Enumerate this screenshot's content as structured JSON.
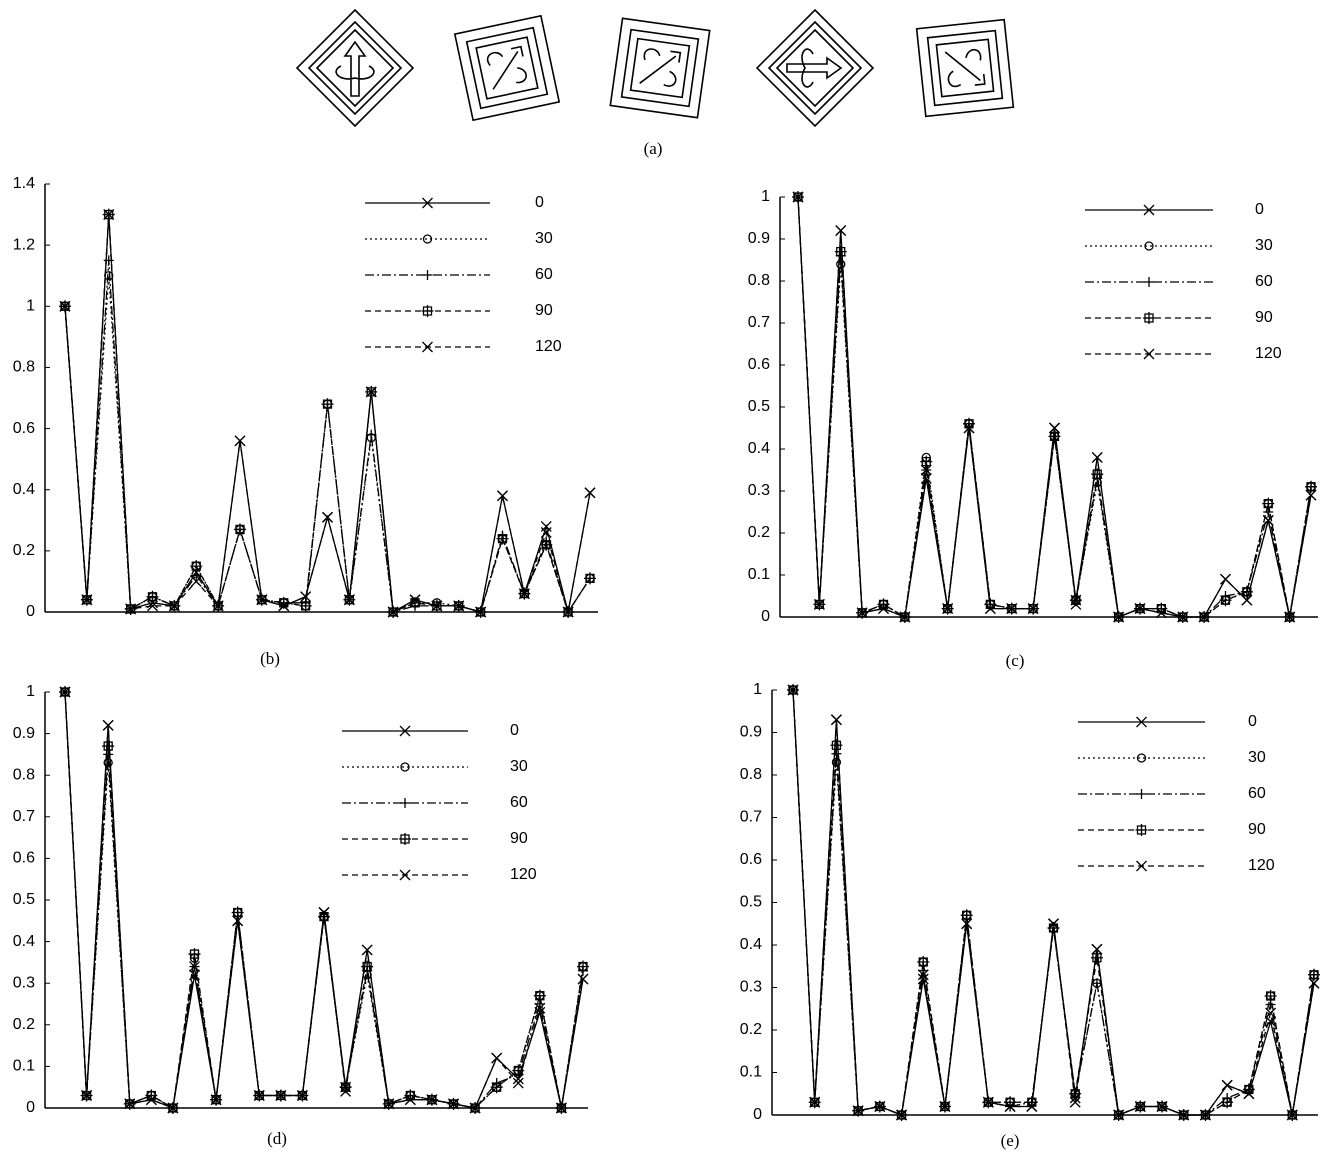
{
  "figure": {
    "panel_a_caption": "(a)"
  },
  "chart_data": [
    {
      "type": "line",
      "caption": "(b)",
      "categories": [
        null,
        null,
        null,
        null,
        null,
        null,
        null,
        null,
        null,
        null,
        null,
        null,
        null,
        null,
        null,
        null,
        null,
        null,
        null,
        null,
        null,
        null,
        null,
        null,
        null
      ],
      "ylim": [
        0,
        1.4
      ],
      "yticks": [
        0,
        0.2,
        0.4,
        0.6,
        0.8,
        1,
        1.2,
        1.4
      ],
      "series": [
        {
          "name": "0",
          "color": "#000",
          "style": "solid",
          "marker": "x",
          "values": [
            1.0,
            0.04,
            1.3,
            0.01,
            0.03,
            0.02,
            0.13,
            0.02,
            0.56,
            0.04,
            0.02,
            0.05,
            0.31,
            0.04,
            0.72,
            0.0,
            0.04,
            0.02,
            0.02,
            0.0,
            0.38,
            0.06,
            0.28,
            0.0,
            0.39
          ]
        },
        {
          "name": "30",
          "color": "#000",
          "style": "dotted",
          "marker": "o",
          "values": [
            1.0,
            0.04,
            1.1,
            0.01,
            0.05,
            0.02,
            0.15,
            0.02,
            0.27,
            0.04,
            0.03,
            0.02,
            0.68,
            0.04,
            0.57,
            0.0,
            0.03,
            0.03,
            0.02,
            0.0,
            0.24,
            0.06,
            0.22,
            0.0,
            0.11
          ]
        },
        {
          "name": "60",
          "color": "#000",
          "style": "dashdot",
          "marker": "+",
          "values": [
            1.0,
            0.04,
            1.15,
            0.01,
            0.05,
            0.02,
            0.12,
            0.02,
            0.27,
            0.04,
            0.03,
            0.03,
            0.68,
            0.04,
            0.58,
            0.0,
            0.02,
            0.02,
            0.02,
            0.0,
            0.25,
            0.06,
            0.23,
            0.0,
            0.11
          ]
        },
        {
          "name": "90",
          "color": "#000",
          "style": "dashed",
          "marker": "star",
          "values": [
            1.0,
            0.04,
            1.3,
            0.01,
            0.05,
            0.02,
            0.15,
            0.02,
            0.27,
            0.04,
            0.03,
            0.02,
            0.68,
            0.04,
            0.72,
            0.0,
            0.03,
            0.02,
            0.02,
            0.0,
            0.24,
            0.06,
            0.22,
            0.0,
            0.11
          ]
        },
        {
          "name": "120",
          "color": "#000",
          "style": "dashed",
          "marker": "x",
          "values": [
            1.0,
            0.04,
            1.3,
            0.01,
            0.02,
            0.02,
            0.1,
            0.02,
            0.56,
            0.04,
            0.02,
            0.05,
            0.31,
            0.04,
            0.72,
            0.0,
            0.04,
            0.02,
            0.02,
            0.0,
            0.38,
            0.06,
            0.26,
            0.0,
            0.39
          ]
        }
      ]
    },
    {
      "type": "line",
      "caption": "(c)",
      "categories": [
        null,
        null,
        null,
        null,
        null,
        null,
        null,
        null,
        null,
        null,
        null,
        null,
        null,
        null,
        null,
        null,
        null,
        null,
        null,
        null,
        null,
        null,
        null,
        null,
        null
      ],
      "ylim": [
        0,
        1
      ],
      "yticks": [
        0,
        0.1,
        0.2,
        0.3,
        0.4,
        0.5,
        0.6,
        0.7,
        0.8,
        0.9,
        1
      ],
      "series": [
        {
          "name": "0",
          "color": "#000",
          "style": "solid",
          "marker": "x",
          "values": [
            1,
            0.03,
            0.92,
            0.01,
            0.02,
            0.0,
            0.33,
            0.02,
            0.45,
            0.02,
            0.02,
            0.02,
            0.45,
            0.04,
            0.38,
            0.0,
            0.02,
            0.01,
            0.0,
            0.0,
            0.09,
            0.04,
            0.23,
            0.0,
            0.29
          ]
        },
        {
          "name": "30",
          "color": "#000",
          "style": "dotted",
          "marker": "o",
          "values": [
            1,
            0.03,
            0.84,
            0.01,
            0.03,
            0.0,
            0.38,
            0.02,
            0.46,
            0.03,
            0.02,
            0.02,
            0.43,
            0.04,
            0.32,
            0.0,
            0.02,
            0.02,
            0.0,
            0.0,
            0.04,
            0.06,
            0.27,
            0.0,
            0.31
          ]
        },
        {
          "name": "60",
          "color": "#000",
          "style": "dashdot",
          "marker": "+",
          "values": [
            1,
            0.03,
            0.86,
            0.01,
            0.03,
            0.0,
            0.35,
            0.02,
            0.46,
            0.03,
            0.02,
            0.02,
            0.43,
            0.04,
            0.33,
            0.0,
            0.02,
            0.02,
            0.0,
            0.0,
            0.05,
            0.06,
            0.25,
            0.0,
            0.31
          ]
        },
        {
          "name": "90",
          "color": "#000",
          "style": "dashed",
          "marker": "star",
          "values": [
            1,
            0.03,
            0.87,
            0.01,
            0.03,
            0.0,
            0.37,
            0.02,
            0.46,
            0.03,
            0.02,
            0.02,
            0.43,
            0.04,
            0.34,
            0.0,
            0.02,
            0.02,
            0.0,
            0.0,
            0.04,
            0.06,
            0.27,
            0.0,
            0.31
          ]
        },
        {
          "name": "120",
          "color": "#000",
          "style": "dashed",
          "marker": "x",
          "values": [
            1,
            0.03,
            0.92,
            0.01,
            0.02,
            0.0,
            0.35,
            0.02,
            0.45,
            0.02,
            0.02,
            0.02,
            0.45,
            0.03,
            0.38,
            0.0,
            0.02,
            0.01,
            0.0,
            0.0,
            0.09,
            0.04,
            0.23,
            0.0,
            0.29
          ]
        }
      ]
    },
    {
      "type": "line",
      "caption": "(d)",
      "categories": [
        null,
        null,
        null,
        null,
        null,
        null,
        null,
        null,
        null,
        null,
        null,
        null,
        null,
        null,
        null,
        null,
        null,
        null,
        null,
        null,
        null,
        null,
        null,
        null,
        null
      ],
      "ylim": [
        0,
        1
      ],
      "yticks": [
        0,
        0.1,
        0.2,
        0.3,
        0.4,
        0.5,
        0.6,
        0.7,
        0.8,
        0.9,
        1
      ],
      "series": [
        {
          "name": "0",
          "color": "#000",
          "style": "solid",
          "marker": "x",
          "values": [
            1,
            0.03,
            0.92,
            0.01,
            0.02,
            0.0,
            0.32,
            0.02,
            0.45,
            0.03,
            0.03,
            0.03,
            0.47,
            0.05,
            0.38,
            0.01,
            0.02,
            0.02,
            0.01,
            0.0,
            0.12,
            0.07,
            0.23,
            0.0,
            0.31
          ]
        },
        {
          "name": "30",
          "color": "#000",
          "style": "dotted",
          "marker": "o",
          "values": [
            1,
            0.03,
            0.83,
            0.01,
            0.03,
            0.0,
            0.36,
            0.02,
            0.47,
            0.03,
            0.03,
            0.03,
            0.46,
            0.05,
            0.32,
            0.01,
            0.03,
            0.02,
            0.01,
            0.0,
            0.05,
            0.09,
            0.27,
            0.0,
            0.34
          ]
        },
        {
          "name": "60",
          "color": "#000",
          "style": "dashdot",
          "marker": "+",
          "values": [
            1,
            0.03,
            0.85,
            0.01,
            0.03,
            0.0,
            0.34,
            0.02,
            0.47,
            0.03,
            0.03,
            0.03,
            0.46,
            0.05,
            0.33,
            0.01,
            0.03,
            0.02,
            0.01,
            0.0,
            0.06,
            0.08,
            0.25,
            0.0,
            0.33
          ]
        },
        {
          "name": "90",
          "color": "#000",
          "style": "dashed",
          "marker": "star",
          "values": [
            1,
            0.03,
            0.87,
            0.01,
            0.03,
            0.0,
            0.37,
            0.02,
            0.47,
            0.03,
            0.03,
            0.03,
            0.46,
            0.05,
            0.34,
            0.01,
            0.03,
            0.02,
            0.01,
            0.0,
            0.05,
            0.09,
            0.27,
            0.0,
            0.34
          ]
        },
        {
          "name": "120",
          "color": "#000",
          "style": "dashed",
          "marker": "x",
          "values": [
            1,
            0.03,
            0.92,
            0.01,
            0.02,
            0.0,
            0.34,
            0.02,
            0.45,
            0.03,
            0.03,
            0.03,
            0.47,
            0.04,
            0.38,
            0.01,
            0.02,
            0.02,
            0.01,
            0.0,
            0.12,
            0.06,
            0.24,
            0.0,
            0.31
          ]
        }
      ]
    },
    {
      "type": "line",
      "caption": "(e)",
      "categories": [
        null,
        null,
        null,
        null,
        null,
        null,
        null,
        null,
        null,
        null,
        null,
        null,
        null,
        null,
        null,
        null,
        null,
        null,
        null,
        null,
        null,
        null,
        null,
        null,
        null
      ],
      "ylim": [
        0,
        1
      ],
      "yticks": [
        0,
        0.1,
        0.2,
        0.3,
        0.4,
        0.5,
        0.6,
        0.7,
        0.8,
        0.9,
        1
      ],
      "series": [
        {
          "name": "0",
          "color": "#000",
          "style": "solid",
          "marker": "x",
          "values": [
            1,
            0.03,
            0.93,
            0.01,
            0.02,
            0.0,
            0.32,
            0.02,
            0.45,
            0.03,
            0.02,
            0.02,
            0.45,
            0.04,
            0.39,
            0.0,
            0.02,
            0.02,
            0.0,
            0.0,
            0.07,
            0.05,
            0.22,
            0.0,
            0.31
          ]
        },
        {
          "name": "30",
          "color": "#000",
          "style": "dotted",
          "marker": "o",
          "values": [
            1,
            0.03,
            0.83,
            0.01,
            0.02,
            0.0,
            0.36,
            0.02,
            0.47,
            0.03,
            0.03,
            0.03,
            0.44,
            0.05,
            0.31,
            0.0,
            0.02,
            0.02,
            0.0,
            0.0,
            0.03,
            0.06,
            0.28,
            0.0,
            0.33
          ]
        },
        {
          "name": "60",
          "color": "#000",
          "style": "dashdot",
          "marker": "+",
          "values": [
            1,
            0.03,
            0.85,
            0.01,
            0.02,
            0.0,
            0.34,
            0.02,
            0.47,
            0.03,
            0.02,
            0.03,
            0.44,
            0.05,
            0.31,
            0.0,
            0.02,
            0.02,
            0.0,
            0.0,
            0.04,
            0.06,
            0.26,
            0.0,
            0.33
          ]
        },
        {
          "name": "90",
          "color": "#000",
          "style": "dashed",
          "marker": "star",
          "values": [
            1,
            0.03,
            0.87,
            0.01,
            0.02,
            0.0,
            0.36,
            0.02,
            0.47,
            0.03,
            0.03,
            0.03,
            0.44,
            0.05,
            0.37,
            0.0,
            0.02,
            0.02,
            0.0,
            0.0,
            0.03,
            0.06,
            0.28,
            0.0,
            0.33
          ]
        },
        {
          "name": "120",
          "color": "#000",
          "style": "dashed",
          "marker": "x",
          "values": [
            1,
            0.03,
            0.93,
            0.01,
            0.02,
            0.0,
            0.33,
            0.02,
            0.45,
            0.03,
            0.02,
            0.02,
            0.45,
            0.03,
            0.39,
            0.0,
            0.02,
            0.02,
            0.0,
            0.0,
            0.07,
            0.05,
            0.24,
            0.0,
            0.31
          ]
        }
      ]
    }
  ]
}
